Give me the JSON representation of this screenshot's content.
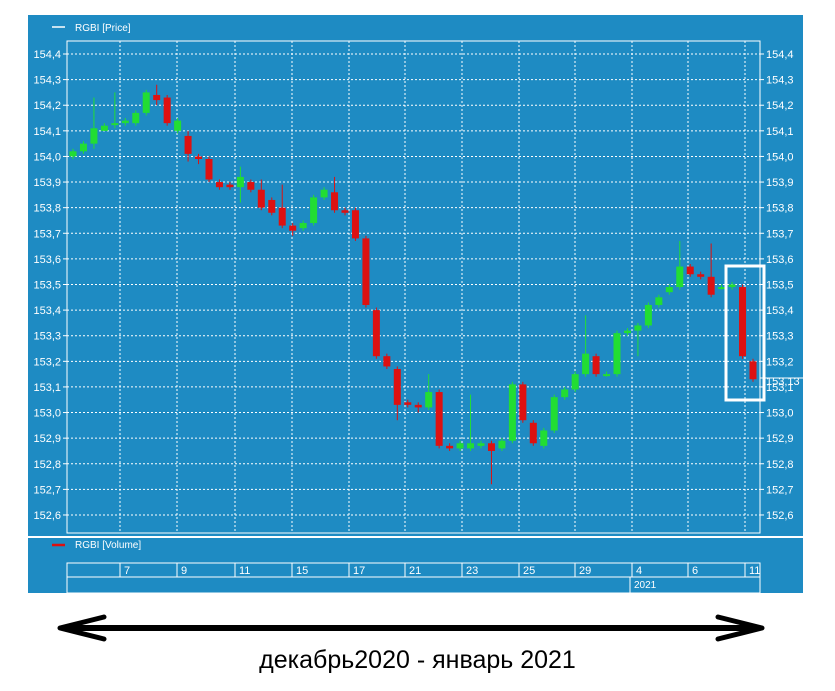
{
  "colors": {
    "panel": "#1e8bc3",
    "grid": "#ffffff",
    "up": "#22dd33",
    "down": "#dd1111",
    "text": "#ffffff",
    "highlight": "#ffffff",
    "arrow": "#000000"
  },
  "legend": {
    "price_label": "RGBI [Price]",
    "volume_label": "RGBI [Volume]"
  },
  "caption": "декабрь2020 - январь 2021",
  "chart_data": {
    "type": "candlestick",
    "title": "",
    "series_name": "RGBI [Price]",
    "ylim": [
      152.55,
      154.45
    ],
    "y_ticks": [
      "154,4",
      "154,3",
      "154,2",
      "154,1",
      "154,0",
      "153,9",
      "153,8",
      "153,7",
      "153,6",
      "153,5",
      "153,4",
      "153,3",
      "153,2",
      "153,1",
      "153,0",
      "152,9",
      "152,8",
      "152,7",
      "152,6"
    ],
    "y_tick_values": [
      154.4,
      154.3,
      154.2,
      154.1,
      154.0,
      153.9,
      153.8,
      153.7,
      153.6,
      153.5,
      153.4,
      153.3,
      153.2,
      153.1,
      153.0,
      152.9,
      152.8,
      152.7,
      152.6
    ],
    "last_price_label": "153,13",
    "x_tick_labels": [
      "7",
      "9",
      "11",
      "15",
      "17",
      "21",
      "23",
      "25",
      "29",
      "4",
      "6",
      "11"
    ],
    "year_label": "2021",
    "grid": true,
    "candles": [
      {
        "o": 154.0,
        "c": 154.02,
        "h": 154.03,
        "l": 153.99
      },
      {
        "o": 154.02,
        "c": 154.05,
        "h": 154.06,
        "l": 154.01
      },
      {
        "o": 154.05,
        "c": 154.11,
        "h": 154.23,
        "l": 154.03
      },
      {
        "o": 154.1,
        "c": 154.12,
        "h": 154.13,
        "l": 154.1
      },
      {
        "o": 154.13,
        "c": 154.13,
        "h": 154.25,
        "l": 154.11
      },
      {
        "o": 154.13,
        "c": 154.14,
        "h": 154.15,
        "l": 154.12
      },
      {
        "o": 154.13,
        "c": 154.17,
        "h": 154.18,
        "l": 154.12
      },
      {
        "o": 154.17,
        "c": 154.25,
        "h": 154.26,
        "l": 154.16
      },
      {
        "o": 154.24,
        "c": 154.22,
        "h": 154.28,
        "l": 154.2
      },
      {
        "o": 154.23,
        "c": 154.13,
        "h": 154.24,
        "l": 154.12
      },
      {
        "o": 154.1,
        "c": 154.14,
        "h": 154.15,
        "l": 154.09
      },
      {
        "o": 154.08,
        "c": 154.01,
        "h": 154.1,
        "l": 153.98
      },
      {
        "o": 154.0,
        "c": 153.99,
        "h": 154.01,
        "l": 153.97
      },
      {
        "o": 153.99,
        "c": 153.91,
        "h": 154.0,
        "l": 153.9
      },
      {
        "o": 153.9,
        "c": 153.88,
        "h": 153.91,
        "l": 153.87
      },
      {
        "o": 153.89,
        "c": 153.88,
        "h": 153.9,
        "l": 153.87
      },
      {
        "o": 153.88,
        "c": 153.92,
        "h": 153.96,
        "l": 153.82
      },
      {
        "o": 153.9,
        "c": 153.87,
        "h": 153.91,
        "l": 153.86
      },
      {
        "o": 153.87,
        "c": 153.8,
        "h": 153.91,
        "l": 153.79
      },
      {
        "o": 153.83,
        "c": 153.78,
        "h": 153.84,
        "l": 153.77
      },
      {
        "o": 153.8,
        "c": 153.73,
        "h": 153.89,
        "l": 153.72
      },
      {
        "o": 153.73,
        "c": 153.71,
        "h": 153.74,
        "l": 153.69
      },
      {
        "o": 153.72,
        "c": 153.74,
        "h": 153.75,
        "l": 153.71
      },
      {
        "o": 153.74,
        "c": 153.84,
        "h": 153.85,
        "l": 153.73
      },
      {
        "o": 153.84,
        "c": 153.87,
        "h": 153.88,
        "l": 153.83
      },
      {
        "o": 153.86,
        "c": 153.79,
        "h": 153.92,
        "l": 153.78
      },
      {
        "o": 153.79,
        "c": 153.78,
        "h": 153.8,
        "l": 153.77
      },
      {
        "o": 153.79,
        "c": 153.68,
        "h": 153.8,
        "l": 153.67
      },
      {
        "o": 153.68,
        "c": 153.42,
        "h": 153.69,
        "l": 153.41
      },
      {
        "o": 153.4,
        "c": 153.22,
        "h": 153.41,
        "l": 153.21
      },
      {
        "o": 153.22,
        "c": 153.18,
        "h": 153.23,
        "l": 153.17
      },
      {
        "o": 153.17,
        "c": 153.03,
        "h": 153.18,
        "l": 152.97
      },
      {
        "o": 153.04,
        "c": 153.03,
        "h": 153.05,
        "l": 153.02
      },
      {
        "o": 153.03,
        "c": 153.02,
        "h": 153.04,
        "l": 153.0
      },
      {
        "o": 153.02,
        "c": 153.08,
        "h": 153.15,
        "l": 153.01
      },
      {
        "o": 153.08,
        "c": 152.87,
        "h": 153.09,
        "l": 152.86
      },
      {
        "o": 152.87,
        "c": 152.86,
        "h": 152.88,
        "l": 152.85
      },
      {
        "o": 152.86,
        "c": 152.88,
        "h": 152.89,
        "l": 152.85
      },
      {
        "o": 152.86,
        "c": 152.88,
        "h": 153.07,
        "l": 152.85
      },
      {
        "o": 152.87,
        "c": 152.88,
        "h": 152.89,
        "l": 152.86
      },
      {
        "o": 152.88,
        "c": 152.85,
        "h": 152.89,
        "l": 152.72
      },
      {
        "o": 152.86,
        "c": 152.89,
        "h": 152.9,
        "l": 152.85
      },
      {
        "o": 152.89,
        "c": 153.11,
        "h": 153.12,
        "l": 152.88
      },
      {
        "o": 153.11,
        "c": 152.97,
        "h": 153.12,
        "l": 152.96
      },
      {
        "o": 152.96,
        "c": 152.88,
        "h": 152.97,
        "l": 152.87
      },
      {
        "o": 152.87,
        "c": 152.93,
        "h": 152.94,
        "l": 152.86
      },
      {
        "o": 152.93,
        "c": 153.06,
        "h": 153.07,
        "l": 152.92
      },
      {
        "o": 153.06,
        "c": 153.09,
        "h": 153.1,
        "l": 153.05
      },
      {
        "o": 153.09,
        "c": 153.15,
        "h": 153.16,
        "l": 153.08
      },
      {
        "o": 153.15,
        "c": 153.23,
        "h": 153.38,
        "l": 153.14
      },
      {
        "o": 153.22,
        "c": 153.15,
        "h": 153.23,
        "l": 153.14
      },
      {
        "o": 153.15,
        "c": 153.15,
        "h": 153.16,
        "l": 153.14
      },
      {
        "o": 153.15,
        "c": 153.31,
        "h": 153.32,
        "l": 153.14
      },
      {
        "o": 153.31,
        "c": 153.32,
        "h": 153.33,
        "l": 153.3
      },
      {
        "o": 153.32,
        "c": 153.34,
        "h": 153.35,
        "l": 153.22
      },
      {
        "o": 153.34,
        "c": 153.42,
        "h": 153.43,
        "l": 153.33
      },
      {
        "o": 153.42,
        "c": 153.45,
        "h": 153.46,
        "l": 153.41
      },
      {
        "o": 153.47,
        "c": 153.49,
        "h": 153.5,
        "l": 153.46
      },
      {
        "o": 153.49,
        "c": 153.57,
        "h": 153.67,
        "l": 153.48
      },
      {
        "o": 153.57,
        "c": 153.54,
        "h": 153.58,
        "l": 153.53
      },
      {
        "o": 153.54,
        "c": 153.53,
        "h": 153.55,
        "l": 153.52
      },
      {
        "o": 153.53,
        "c": 153.46,
        "h": 153.66,
        "l": 153.45
      },
      {
        "o": 153.49,
        "c": 153.49,
        "h": 153.5,
        "l": 153.48
      },
      {
        "o": 153.49,
        "c": 153.5,
        "h": 153.51,
        "l": 153.48
      },
      {
        "o": 153.49,
        "c": 153.22,
        "h": 153.5,
        "l": 153.21
      },
      {
        "o": 153.2,
        "c": 153.13,
        "h": 153.21,
        "l": 153.12
      }
    ]
  }
}
